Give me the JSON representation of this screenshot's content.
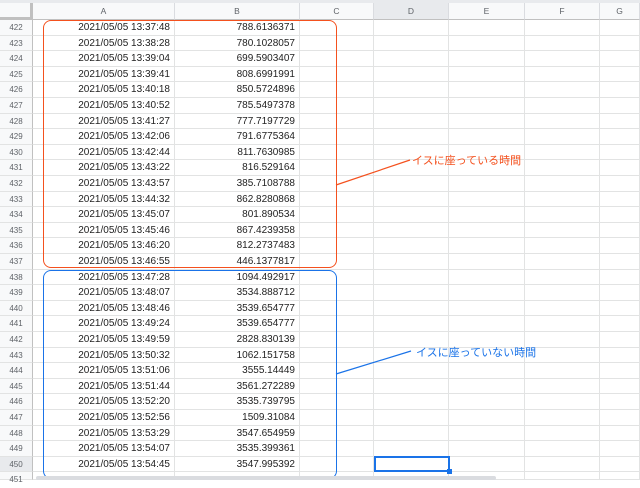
{
  "columns": [
    "A",
    "B",
    "C",
    "D",
    "E",
    "F",
    "G"
  ],
  "selected_column": "D",
  "selected_row": "450",
  "rows": [
    {
      "num": "422",
      "a": "2021/05/05 13:37:48",
      "b": "788.6136371"
    },
    {
      "num": "423",
      "a": "2021/05/05 13:38:28",
      "b": "780.1028057"
    },
    {
      "num": "424",
      "a": "2021/05/05 13:39:04",
      "b": "699.5903407"
    },
    {
      "num": "425",
      "a": "2021/05/05 13:39:41",
      "b": "808.6991991"
    },
    {
      "num": "426",
      "a": "2021/05/05 13:40:18",
      "b": "850.5724896"
    },
    {
      "num": "427",
      "a": "2021/05/05 13:40:52",
      "b": "785.5497378"
    },
    {
      "num": "428",
      "a": "2021/05/05 13:41:27",
      "b": "777.7197729"
    },
    {
      "num": "429",
      "a": "2021/05/05 13:42:06",
      "b": "791.6775364"
    },
    {
      "num": "430",
      "a": "2021/05/05 13:42:44",
      "b": "811.7630985"
    },
    {
      "num": "431",
      "a": "2021/05/05 13:43:22",
      "b": "816.529164"
    },
    {
      "num": "432",
      "a": "2021/05/05 13:43:57",
      "b": "385.7108788"
    },
    {
      "num": "433",
      "a": "2021/05/05 13:44:32",
      "b": "862.8280868"
    },
    {
      "num": "434",
      "a": "2021/05/05 13:45:07",
      "b": "801.890534"
    },
    {
      "num": "435",
      "a": "2021/05/05 13:45:46",
      "b": "867.4239358"
    },
    {
      "num": "436",
      "a": "2021/05/05 13:46:20",
      "b": "812.2737483"
    },
    {
      "num": "437",
      "a": "2021/05/05 13:46:55",
      "b": "446.1377817"
    },
    {
      "num": "438",
      "a": "2021/05/05 13:47:28",
      "b": "1094.492917"
    },
    {
      "num": "439",
      "a": "2021/05/05 13:48:07",
      "b": "3534.888712"
    },
    {
      "num": "440",
      "a": "2021/05/05 13:48:46",
      "b": "3539.654777"
    },
    {
      "num": "441",
      "a": "2021/05/05 13:49:24",
      "b": "3539.654777"
    },
    {
      "num": "442",
      "a": "2021/05/05 13:49:59",
      "b": "2828.830139"
    },
    {
      "num": "443",
      "a": "2021/05/05 13:50:32",
      "b": "1062.151758"
    },
    {
      "num": "444",
      "a": "2021/05/05 13:51:06",
      "b": "3555.14449"
    },
    {
      "num": "445",
      "a": "2021/05/05 13:51:44",
      "b": "3561.272289"
    },
    {
      "num": "446",
      "a": "2021/05/05 13:52:20",
      "b": "3535.739795"
    },
    {
      "num": "447",
      "a": "2021/05/05 13:52:56",
      "b": "1509.31084"
    },
    {
      "num": "448",
      "a": "2021/05/05 13:53:29",
      "b": "3547.654959"
    },
    {
      "num": "449",
      "a": "2021/05/05 13:54:07",
      "b": "3535.399361"
    },
    {
      "num": "450",
      "a": "2021/05/05 13:54:45",
      "b": "3547.995392"
    },
    {
      "num": "451",
      "a": "",
      "b": ""
    }
  ],
  "annotations": {
    "sitting": {
      "label": "イスに座っている時間",
      "color": "#f4511e"
    },
    "not_sitting": {
      "label": "イスに座っていない時間",
      "color": "#1a73e8"
    }
  }
}
